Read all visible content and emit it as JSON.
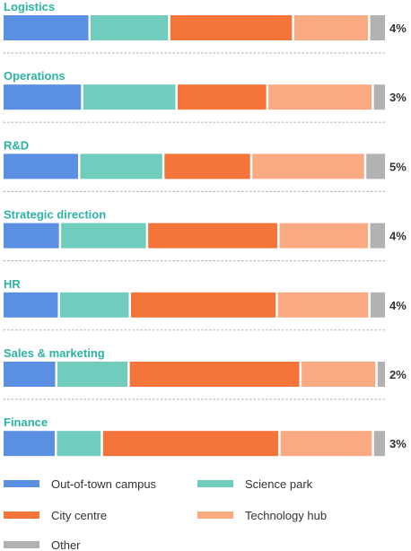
{
  "colors": {
    "heading": "#2bb3a3",
    "divider": "#b9b9b9",
    "pct_text": "#333333",
    "legend_text": "#333333"
  },
  "chart_data": {
    "type": "bar",
    "orientation": "horizontal",
    "stacked": true,
    "percent_stacked": true,
    "units": "%",
    "categories": [
      "Logistics",
      "Operations",
      "R&D",
      "Strategic direction",
      "HR",
      "Sales & marketing",
      "Finance"
    ],
    "series": [
      {
        "name": "Out-of-town campus",
        "color": "#5b8fe1",
        "values": [
          23,
          21,
          20,
          15,
          15,
          14,
          14
        ]
      },
      {
        "name": "Science park",
        "color": "#70cdbd",
        "values": [
          21,
          25,
          22,
          23,
          19,
          19,
          12
        ]
      },
      {
        "name": "City centre",
        "color": "#f4743a",
        "values": [
          33,
          24,
          23,
          35,
          40,
          46,
          48
        ]
      },
      {
        "name": "Technology hub",
        "color": "#f9aa82",
        "values": [
          20,
          28,
          30,
          24,
          25,
          20,
          25
        ]
      },
      {
        "name": "Other",
        "color": "#b2b2b2",
        "values": [
          4,
          3,
          5,
          4,
          4,
          2,
          3
        ]
      }
    ],
    "value_labels": [
      "4%",
      "3%",
      "5%",
      "4%",
      "4%",
      "2%",
      "3%"
    ],
    "legend": {
      "position": "bottom",
      "columns": 2
    },
    "grid": false
  }
}
